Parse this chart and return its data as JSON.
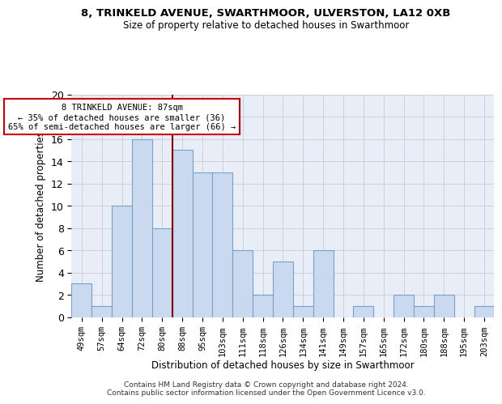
{
  "title1": "8, TRINKELD AVENUE, SWARTHMOOR, ULVERSTON, LA12 0XB",
  "title2": "Size of property relative to detached houses in Swarthmoor",
  "xlabel": "Distribution of detached houses by size in Swarthmoor",
  "ylabel": "Number of detached properties",
  "categories": [
    "49sqm",
    "57sqm",
    "64sqm",
    "72sqm",
    "80sqm",
    "88sqm",
    "95sqm",
    "103sqm",
    "111sqm",
    "118sqm",
    "126sqm",
    "134sqm",
    "141sqm",
    "149sqm",
    "157sqm",
    "165sqm",
    "172sqm",
    "180sqm",
    "188sqm",
    "195sqm",
    "203sqm"
  ],
  "values": [
    3,
    1,
    10,
    16,
    8,
    15,
    13,
    13,
    6,
    2,
    5,
    1,
    6,
    0,
    1,
    0,
    2,
    1,
    2,
    0,
    1
  ],
  "bar_color": "#c9d9f0",
  "bar_edge_color": "#7a9fc9",
  "vline_index": 5,
  "vline_color": "#8b0000",
  "annotation_line1": "8 TRINKELD AVENUE: 87sqm",
  "annotation_line2": "← 35% of detached houses are smaller (36)",
  "annotation_line3": "65% of semi-detached houses are larger (66) →",
  "annotation_box_color": "#ffffff",
  "annotation_box_edge": "#cc0000",
  "ylim": [
    0,
    20
  ],
  "yticks": [
    0,
    2,
    4,
    6,
    8,
    10,
    12,
    14,
    16,
    18,
    20
  ],
  "footer": "Contains HM Land Registry data © Crown copyright and database right 2024.\nContains public sector information licensed under the Open Government Licence v3.0.",
  "background_color": "#e8eef8"
}
